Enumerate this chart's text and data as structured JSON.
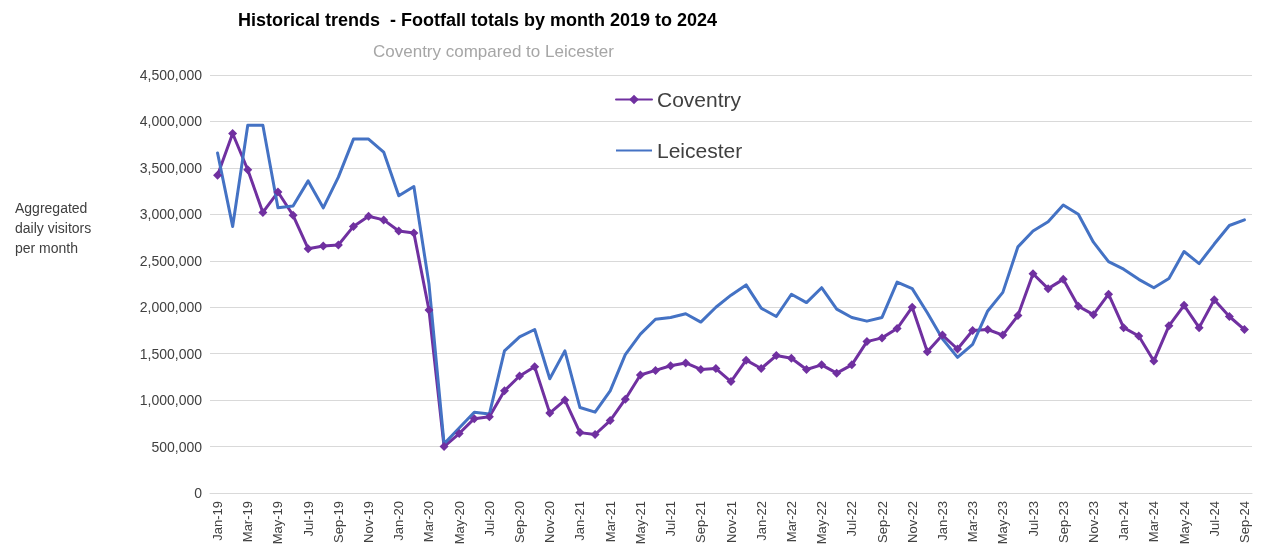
{
  "chart_data": {
    "type": "line",
    "title": "Historical trends  - Footfall totals by month 2019 to 2024",
    "subtitle": "Coventry compared to Leicester",
    "ylabel": "Aggregated daily visitors per month",
    "categories": [
      "Jan-19",
      null,
      "Mar-19",
      null,
      "May-19",
      null,
      "Jul-19",
      null,
      "Sep-19",
      null,
      "Nov-19",
      null,
      "Jan-20",
      null,
      "Mar-20",
      null,
      "May-20",
      null,
      "Jul-20",
      null,
      "Sep-20",
      null,
      "Nov-20",
      null,
      "Jan-21",
      null,
      "Mar-21",
      null,
      "May-21",
      null,
      "Jul-21",
      null,
      "Sep-21",
      null,
      "Nov-21",
      null,
      "Jan-22",
      null,
      "Mar-22",
      null,
      "May-22",
      null,
      "Jul-22",
      null,
      "Sep-22",
      null,
      "Nov-22",
      null,
      "Jan-23",
      null,
      "Mar-23",
      null,
      "May-23",
      null,
      "Jul-23",
      null,
      "Sep-23",
      null,
      "Nov-23",
      null,
      "Jan-24",
      null,
      "Mar-24",
      null,
      "May-24",
      null,
      "Jul-24",
      null,
      "Sep-24"
    ],
    "series": [
      {
        "name": "Coventry",
        "color": "#7030a0",
        "marker": "diamond",
        "values": [
          3420000,
          3870000,
          3480000,
          3020000,
          3240000,
          2990000,
          2630000,
          2660000,
          2670000,
          2870000,
          2980000,
          2940000,
          2820000,
          2800000,
          1970000,
          500000,
          640000,
          800000,
          820000,
          1100000,
          1260000,
          1360000,
          860000,
          1000000,
          650000,
          630000,
          780000,
          1010000,
          1270000,
          1320000,
          1370000,
          1400000,
          1330000,
          1340000,
          1200000,
          1430000,
          1340000,
          1480000,
          1450000,
          1330000,
          1380000,
          1290000,
          1380000,
          1630000,
          1670000,
          1770000,
          2000000,
          1520000,
          1700000,
          1550000,
          1750000,
          1760000,
          1700000,
          1910000,
          2360000,
          2200000,
          2300000,
          2010000,
          1920000,
          2140000,
          1780000,
          1690000,
          1420000,
          1800000,
          2020000,
          1780000,
          2080000,
          1900000,
          1760000
        ]
      },
      {
        "name": "Leicester",
        "color": "#4472c4",
        "marker": "none",
        "values": [
          3660000,
          2870000,
          3960000,
          3960000,
          3070000,
          3090000,
          3360000,
          3070000,
          3400000,
          3810000,
          3810000,
          3670000,
          3200000,
          3300000,
          2250000,
          530000,
          700000,
          870000,
          850000,
          1530000,
          1680000,
          1760000,
          1230000,
          1530000,
          920000,
          870000,
          1100000,
          1490000,
          1710000,
          1870000,
          1890000,
          1930000,
          1840000,
          2000000,
          2130000,
          2240000,
          1990000,
          1900000,
          2140000,
          2050000,
          2210000,
          1980000,
          1890000,
          1850000,
          1890000,
          2270000,
          2200000,
          1940000,
          1660000,
          1460000,
          1600000,
          1960000,
          2160000,
          2650000,
          2820000,
          2920000,
          3100000,
          3000000,
          2700000,
          2490000,
          2410000,
          2300000,
          2210000,
          2310000,
          2600000,
          2470000,
          2680000,
          2880000,
          2940000
        ]
      }
    ],
    "ylim": [
      0,
      4500000
    ],
    "yticks": [
      0,
      {
        "value": 500000,
        "label": "500,000"
      },
      {
        "value": 1000000,
        "label": "1,000,000"
      },
      {
        "value": 1500000,
        "label": "1,500,000"
      },
      {
        "value": 2000000,
        "label": "2,000,000"
      },
      {
        "value": 2500000,
        "label": "2,500,000"
      },
      {
        "value": 3000000,
        "label": "3,000,000"
      },
      {
        "value": 3500000,
        "label": "3,500,000"
      },
      {
        "value": 4000000,
        "label": "4,000,000"
      },
      {
        "value": 4500000,
        "label": "4,500,000"
      }
    ],
    "grid": "y",
    "legend": "top",
    "line_style": "solid"
  }
}
